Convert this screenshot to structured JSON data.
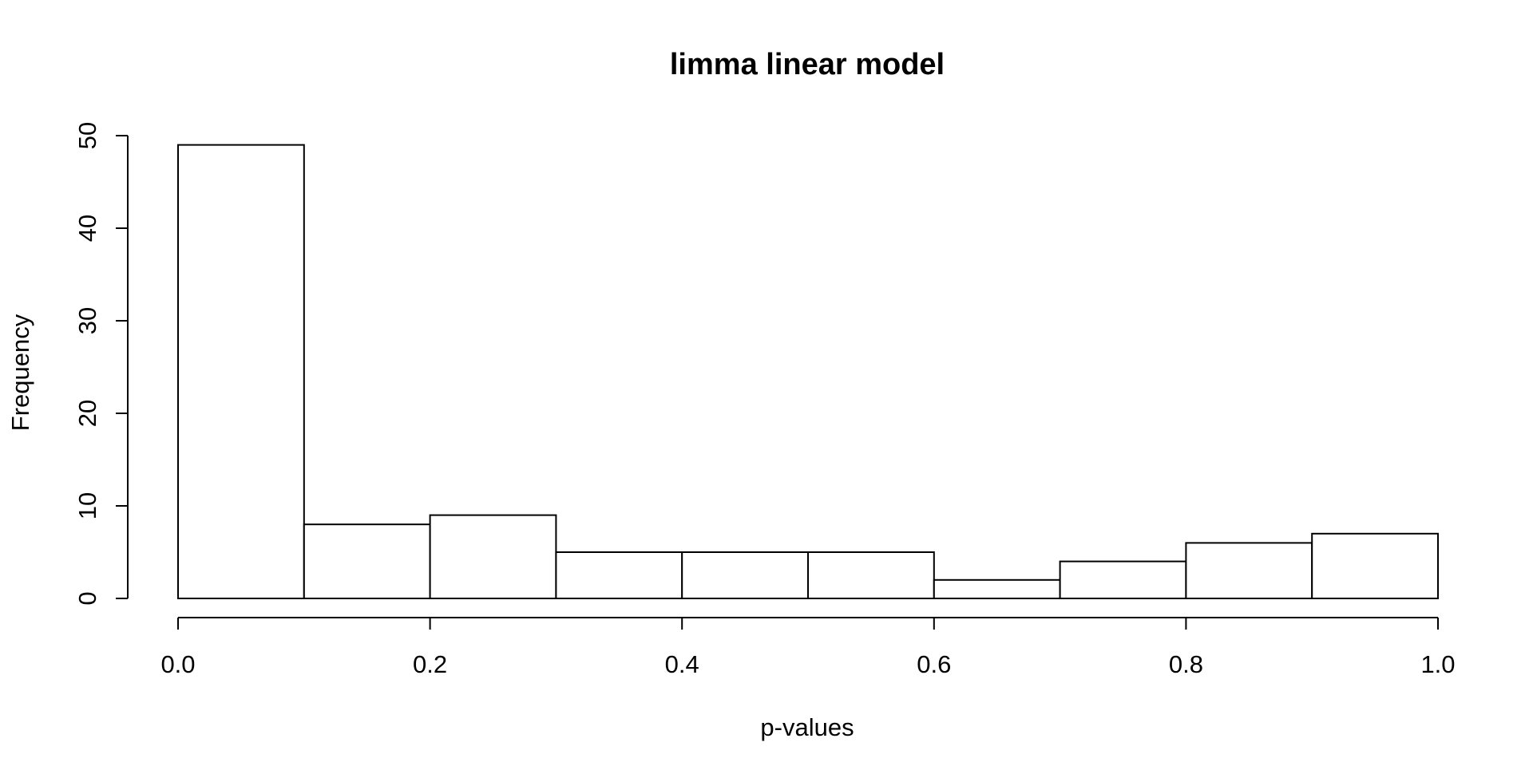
{
  "chart_data": {
    "type": "bar",
    "title": "limma linear model",
    "xlabel": "p-values",
    "ylabel": "Frequency",
    "bins": [
      {
        "start": 0.0,
        "end": 0.1,
        "count": 49
      },
      {
        "start": 0.1,
        "end": 0.2,
        "count": 8
      },
      {
        "start": 0.2,
        "end": 0.3,
        "count": 9
      },
      {
        "start": 0.3,
        "end": 0.4,
        "count": 5
      },
      {
        "start": 0.4,
        "end": 0.5,
        "count": 5
      },
      {
        "start": 0.5,
        "end": 0.6,
        "count": 5
      },
      {
        "start": 0.6,
        "end": 0.7,
        "count": 2
      },
      {
        "start": 0.7,
        "end": 0.8,
        "count": 4
      },
      {
        "start": 0.8,
        "end": 0.9,
        "count": 6
      },
      {
        "start": 0.9,
        "end": 1.0,
        "count": 7
      }
    ],
    "xlim": [
      0.0,
      1.0
    ],
    "ylim": [
      0,
      50
    ],
    "x_ticks": [
      {
        "value": 0.0,
        "label": "0.0"
      },
      {
        "value": 0.2,
        "label": "0.2"
      },
      {
        "value": 0.4,
        "label": "0.4"
      },
      {
        "value": 0.6,
        "label": "0.6"
      },
      {
        "value": 0.8,
        "label": "0.8"
      },
      {
        "value": 1.0,
        "label": "1.0"
      }
    ],
    "y_ticks": [
      {
        "value": 0,
        "label": "0"
      },
      {
        "value": 10,
        "label": "10"
      },
      {
        "value": 20,
        "label": "20"
      },
      {
        "value": 30,
        "label": "30"
      },
      {
        "value": 40,
        "label": "40"
      },
      {
        "value": 50,
        "label": "50"
      }
    ],
    "grid": false,
    "colors": {
      "bar_fill": "#ffffff",
      "bar_stroke": "#000000"
    }
  }
}
